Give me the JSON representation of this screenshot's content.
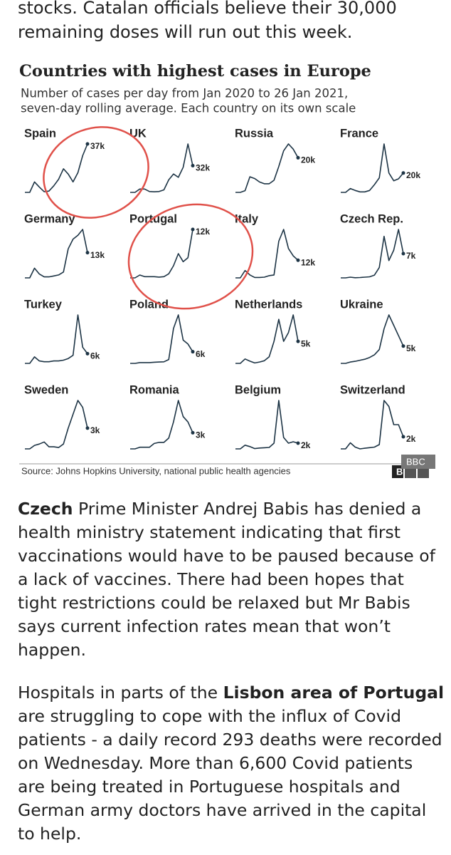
{
  "intro": [
    "stocks. Catalan officials believe their 30,000",
    "remaining doses will run out this week."
  ],
  "chart_data": {
    "type": "line",
    "title": "Countries with highest cases in Europe",
    "subtitle": [
      "Number of cases per day from Jan 2020 to 26 Jan 2021,",
      "seven-day rolling average. Each country on its own scale"
    ],
    "source": "Source: Johns Hopkins University, national public health agencies",
    "logo": [
      "B",
      "BBC"
    ],
    "color": "#1d3445",
    "panels": [
      {
        "name": "Spain",
        "values": [
          0,
          0,
          8,
          4,
          0.5,
          1,
          5,
          10,
          18,
          14,
          8,
          15,
          28,
          37
        ],
        "value_labels": [
          null,
          null,
          null,
          null,
          null,
          null,
          null,
          null,
          null,
          null,
          null,
          null,
          null,
          "37k"
        ]
      },
      {
        "name": "UK",
        "values": [
          0,
          0,
          4,
          4,
          1,
          0.7,
          1,
          3,
          15,
          22,
          18,
          30,
          58,
          32
        ],
        "value_labels": [
          null,
          null,
          null,
          null,
          null,
          null,
          null,
          null,
          null,
          null,
          null,
          null,
          null,
          "32k"
        ]
      },
      {
        "name": "Russia",
        "values": [
          0,
          0,
          1,
          9,
          8,
          6,
          5,
          5,
          7,
          15,
          24,
          28,
          25,
          20
        ],
        "value_labels": [
          null,
          null,
          null,
          null,
          null,
          null,
          null,
          null,
          null,
          null,
          null,
          null,
          null,
          "20k"
        ]
      },
      {
        "name": "France",
        "values": [
          0,
          0,
          4,
          2,
          0.5,
          0.5,
          2,
          8,
          15,
          50,
          20,
          12,
          14,
          20
        ],
        "value_labels": [
          null,
          null,
          null,
          null,
          null,
          null,
          null,
          null,
          null,
          null,
          null,
          null,
          null,
          "20k"
        ]
      },
      {
        "name": "Germany",
        "values": [
          0,
          0,
          5,
          2,
          0.5,
          0.5,
          1,
          1.5,
          3,
          15,
          20,
          22,
          25,
          13
        ],
        "value_labels": [
          null,
          null,
          null,
          null,
          null,
          null,
          null,
          null,
          null,
          null,
          null,
          null,
          null,
          "13k"
        ]
      },
      {
        "name": "Portugal",
        "values": [
          0,
          0,
          0.7,
          0.3,
          0.3,
          0.3,
          0.2,
          0.3,
          1,
          3,
          6,
          4,
          5,
          12
        ],
        "value_labels": [
          null,
          null,
          null,
          null,
          null,
          null,
          null,
          null,
          null,
          null,
          null,
          null,
          null,
          "12k"
        ]
      },
      {
        "name": "Italy",
        "values": [
          0,
          0,
          5,
          2,
          0.3,
          0.3,
          0.5,
          1.5,
          2,
          25,
          33,
          20,
          15,
          12
        ],
        "value_labels": [
          null,
          null,
          null,
          null,
          null,
          null,
          null,
          null,
          null,
          null,
          null,
          null,
          null,
          "12k"
        ]
      },
      {
        "name": "Czech Rep.",
        "values": [
          0,
          0,
          0.2,
          0.05,
          0.1,
          0.2,
          0.3,
          0.8,
          3,
          12,
          5,
          8,
          14,
          7
        ],
        "value_labels": [
          null,
          null,
          null,
          null,
          null,
          null,
          null,
          null,
          null,
          null,
          null,
          null,
          null,
          "7k"
        ]
      },
      {
        "name": "Turkey",
        "values": [
          0,
          0,
          4,
          1.5,
          1,
          1,
          1.5,
          1.5,
          2,
          3,
          5,
          30,
          10,
          6
        ],
        "value_labels": [
          null,
          null,
          null,
          null,
          null,
          null,
          null,
          null,
          null,
          null,
          null,
          null,
          null,
          "6k"
        ]
      },
      {
        "name": "Poland",
        "values": [
          0,
          0,
          0.4,
          0.4,
          0.4,
          0.6,
          0.7,
          0.8,
          2,
          18,
          25,
          12,
          10,
          6
        ],
        "value_labels": [
          null,
          null,
          null,
          null,
          null,
          null,
          null,
          null,
          null,
          null,
          null,
          null,
          null,
          "6k"
        ]
      },
      {
        "name": "Netherlands",
        "values": [
          0,
          0,
          1,
          0.5,
          0.1,
          0.3,
          0.6,
          1.5,
          5,
          10,
          5,
          7,
          11,
          5
        ],
        "value_labels": [
          null,
          null,
          null,
          null,
          null,
          null,
          null,
          null,
          null,
          null,
          null,
          null,
          null,
          "5k"
        ]
      },
      {
        "name": "Ukraine",
        "values": [
          0,
          0,
          0.4,
          0.6,
          0.9,
          1.2,
          1.7,
          2.5,
          4,
          10,
          14,
          11,
          8,
          5
        ],
        "value_labels": [
          null,
          null,
          null,
          null,
          null,
          null,
          null,
          null,
          null,
          null,
          null,
          null,
          null,
          "5k"
        ]
      },
      {
        "name": "Sweden",
        "values": [
          0,
          0,
          0.5,
          0.7,
          1,
          0.3,
          0.3,
          0.2,
          0.7,
          3,
          5,
          7,
          6,
          3
        ],
        "value_labels": [
          null,
          null,
          null,
          null,
          null,
          null,
          null,
          null,
          null,
          null,
          null,
          null,
          null,
          "3k"
        ]
      },
      {
        "name": "Romania",
        "values": [
          0,
          0,
          0.3,
          0.3,
          0.3,
          1,
          1.2,
          1.2,
          2,
          5,
          9,
          6,
          5,
          3
        ],
        "value_labels": [
          null,
          null,
          null,
          null,
          null,
          null,
          null,
          null,
          null,
          null,
          null,
          null,
          null,
          "3k"
        ]
      },
      {
        "name": "Belgium",
        "values": [
          0,
          0,
          1.3,
          0.8,
          0.1,
          0.3,
          0.4,
          0.5,
          2,
          17,
          4,
          2,
          2.5,
          2
        ],
        "value_labels": [
          null,
          null,
          null,
          null,
          null,
          null,
          null,
          null,
          null,
          null,
          null,
          null,
          null,
          "2k"
        ]
      },
      {
        "name": "Switzerland",
        "values": [
          0,
          0,
          1,
          0.3,
          0,
          0.1,
          0.2,
          0.3,
          0.7,
          8,
          7,
          4,
          4,
          2
        ],
        "value_labels": [
          null,
          null,
          null,
          null,
          null,
          null,
          null,
          null,
          null,
          null,
          null,
          null,
          null,
          "2k"
        ]
      }
    ]
  },
  "paragraphs": [
    [
      "Czech",
      " Prime Minister Andrej Babis has denied a health ministry statement indicating that first vaccinations would have to be paused because of a lack of vaccines. There had been hopes that tight restrictions could be relaxed but Mr Babis says current infection rates mean that won’t happen."
    ],
    [
      "Hospitals in parts of the ",
      "Lisbon area of Portugal",
      " are struggling to cope with the influx of Covid patients - a daily record 293 deaths were recorded on Wednesday. More than 6,600 Covid patients are being treated in Portuguese hospitals and German army doctors have arrived in the capital to help."
    ]
  ]
}
